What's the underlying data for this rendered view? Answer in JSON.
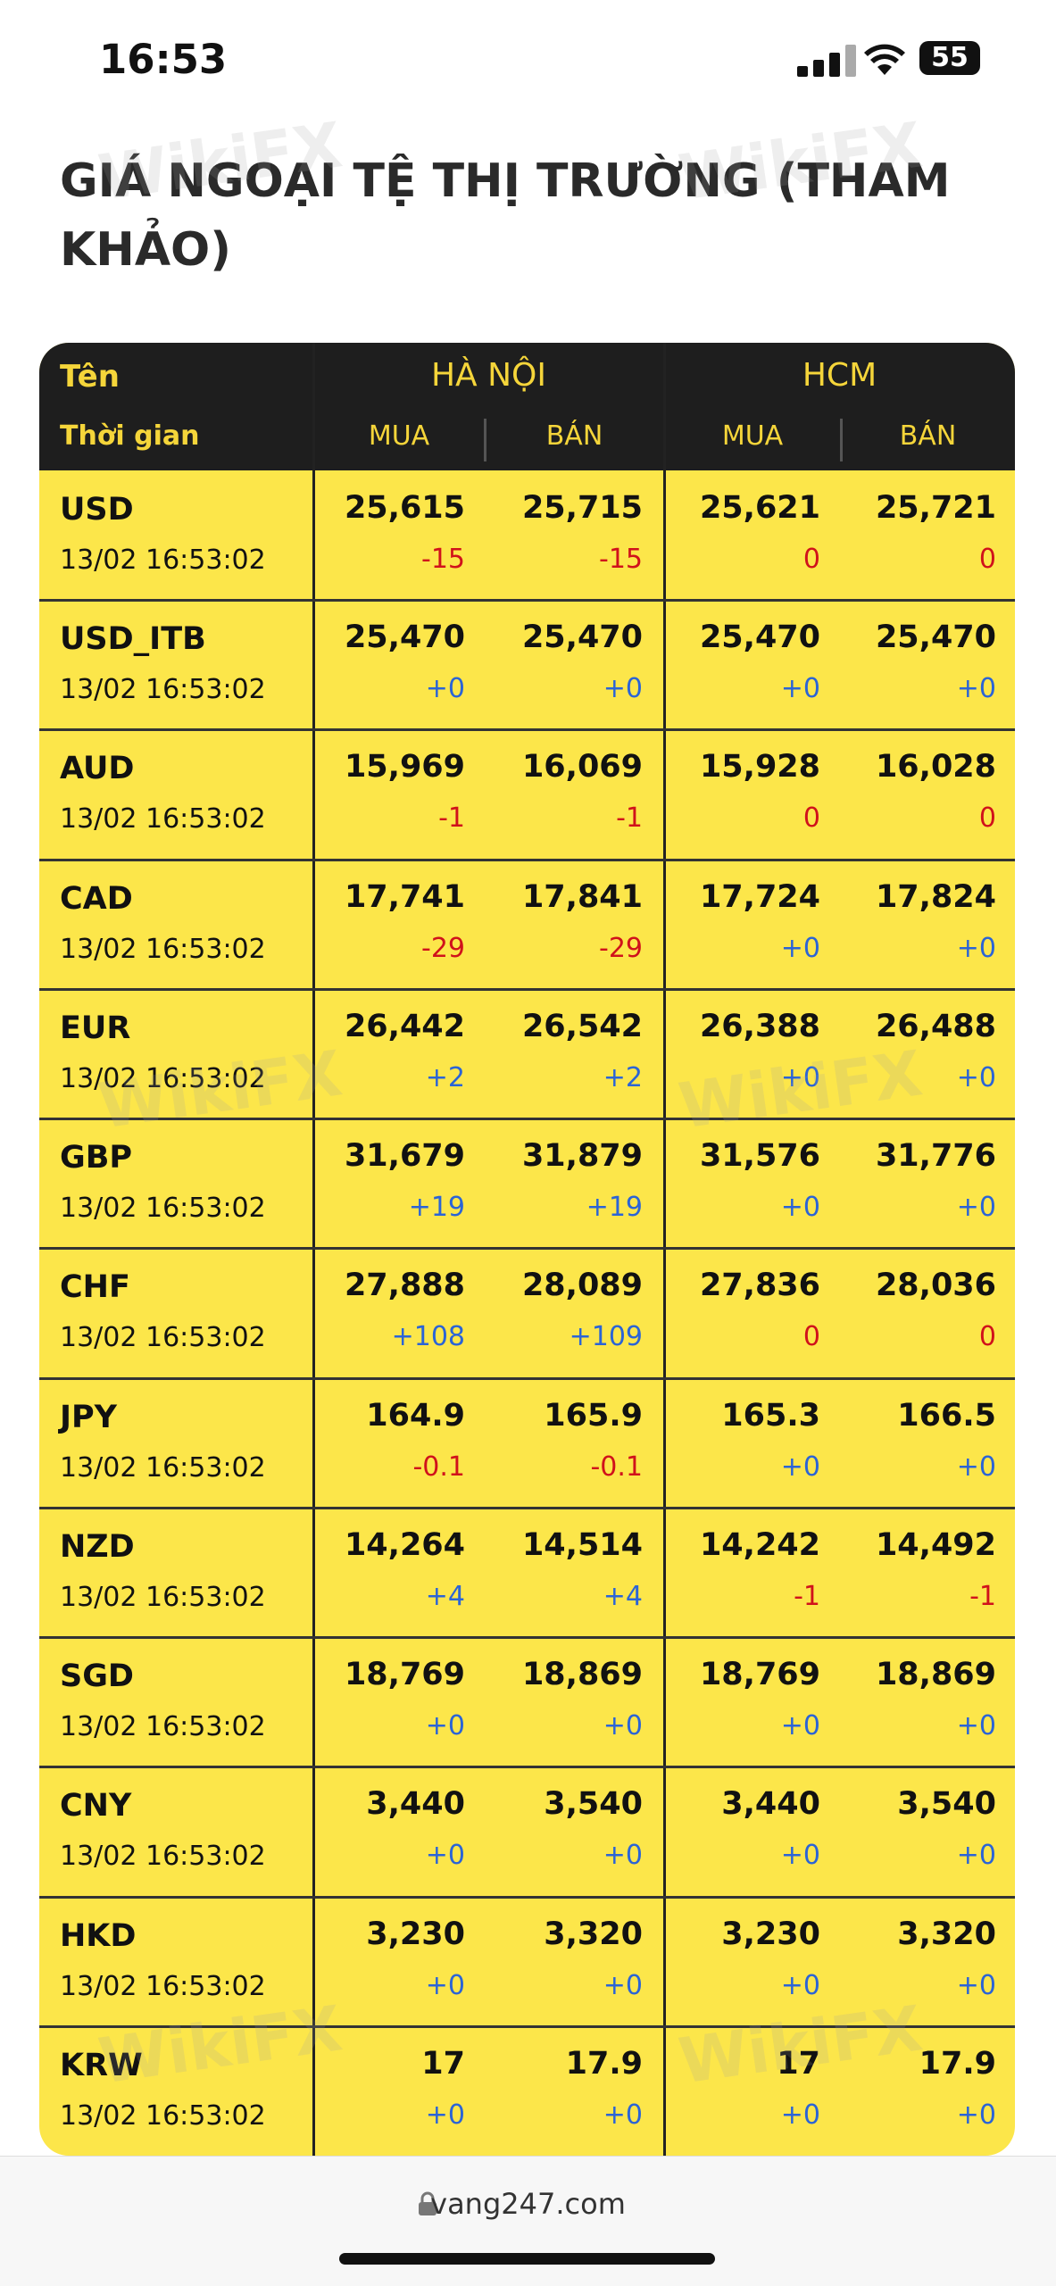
{
  "status_bar": {
    "time": "16:53",
    "battery": "55"
  },
  "header": {
    "title": "GIÁ NGOẠI TỆ THỊ TRƯỜNG (THAM KHẢO)"
  },
  "watermark": "WikiFX",
  "table": {
    "columns": {
      "name": "Tên",
      "time": "Thời gian",
      "groups": [
        "HÀ NỘI",
        "HCM"
      ],
      "sub": [
        "MUA",
        "BÁN",
        "MUA",
        "BÁN"
      ]
    },
    "rows": [
      {
        "name": "USD",
        "time": "13/02 16:53:02",
        "values": [
          "25,615",
          "25,715",
          "25,621",
          "25,721"
        ],
        "changes": [
          "-15",
          "-15",
          "0",
          "0"
        ]
      },
      {
        "name": "USD_ITB",
        "time": "13/02 16:53:02",
        "values": [
          "25,470",
          "25,470",
          "25,470",
          "25,470"
        ],
        "changes": [
          "+0",
          "+0",
          "+0",
          "+0"
        ]
      },
      {
        "name": "AUD",
        "time": "13/02 16:53:02",
        "values": [
          "15,969",
          "16,069",
          "15,928",
          "16,028"
        ],
        "changes": [
          "-1",
          "-1",
          "0",
          "0"
        ]
      },
      {
        "name": "CAD",
        "time": "13/02 16:53:02",
        "values": [
          "17,741",
          "17,841",
          "17,724",
          "17,824"
        ],
        "changes": [
          "-29",
          "-29",
          "+0",
          "+0"
        ]
      },
      {
        "name": "EUR",
        "time": "13/02 16:53:02",
        "values": [
          "26,442",
          "26,542",
          "26,388",
          "26,488"
        ],
        "changes": [
          "+2",
          "+2",
          "+0",
          "+0"
        ]
      },
      {
        "name": "GBP",
        "time": "13/02 16:53:02",
        "values": [
          "31,679",
          "31,879",
          "31,576",
          "31,776"
        ],
        "changes": [
          "+19",
          "+19",
          "+0",
          "+0"
        ]
      },
      {
        "name": "CHF",
        "time": "13/02 16:53:02",
        "values": [
          "27,888",
          "28,089",
          "27,836",
          "28,036"
        ],
        "changes": [
          "+108",
          "+109",
          "0",
          "0"
        ]
      },
      {
        "name": "JPY",
        "time": "13/02 16:53:02",
        "values": [
          "164.9",
          "165.9",
          "165.3",
          "166.5"
        ],
        "changes": [
          "-0.1",
          "-0.1",
          "+0",
          "+0"
        ]
      },
      {
        "name": "NZD",
        "time": "13/02 16:53:02",
        "values": [
          "14,264",
          "14,514",
          "14,242",
          "14,492"
        ],
        "changes": [
          "+4",
          "+4",
          "-1",
          "-1"
        ]
      },
      {
        "name": "SGD",
        "time": "13/02 16:53:02",
        "values": [
          "18,769",
          "18,869",
          "18,769",
          "18,869"
        ],
        "changes": [
          "+0",
          "+0",
          "+0",
          "+0"
        ]
      },
      {
        "name": "CNY",
        "time": "13/02 16:53:02",
        "values": [
          "3,440",
          "3,540",
          "3,440",
          "3,540"
        ],
        "changes": [
          "+0",
          "+0",
          "+0",
          "+0"
        ]
      },
      {
        "name": "HKD",
        "time": "13/02 16:53:02",
        "values": [
          "3,230",
          "3,320",
          "3,230",
          "3,320"
        ],
        "changes": [
          "+0",
          "+0",
          "+0",
          "+0"
        ]
      },
      {
        "name": "KRW",
        "time": "13/02 16:53:02",
        "values": [
          "17",
          "17.9",
          "17",
          "17.9"
        ],
        "changes": [
          "+0",
          "+0",
          "+0",
          "+0"
        ]
      }
    ]
  },
  "footer": {
    "url": "vang247.com"
  }
}
